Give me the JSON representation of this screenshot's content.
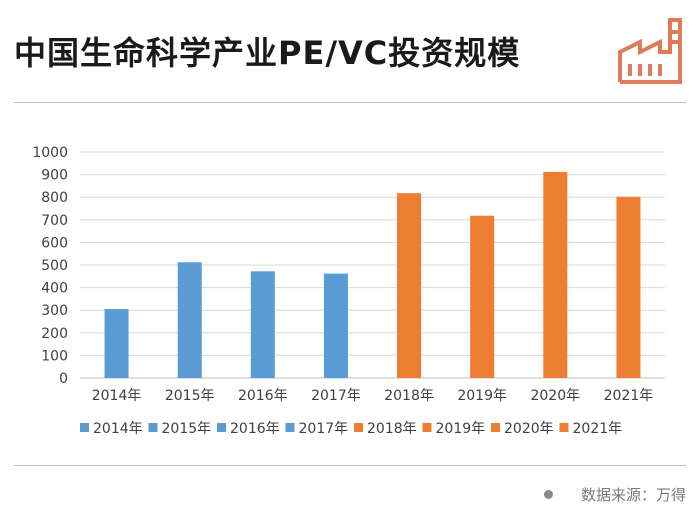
{
  "header": {
    "title": "中国生命科学产业PE/VC投资规模",
    "logo_icon": "factory-icon"
  },
  "colors": {
    "blue": "#5b9bd5",
    "orange": "#ed7d31",
    "logo": "#e07b5a"
  },
  "chart_data": {
    "type": "bar",
    "categories": [
      "2014年",
      "2015年",
      "2016年",
      "2017年",
      "2018年",
      "2019年",
      "2020年",
      "2021年"
    ],
    "values": [
      305,
      512,
      472,
      462,
      818,
      718,
      912,
      802
    ],
    "bar_colors": [
      "blue",
      "blue",
      "blue",
      "blue",
      "orange",
      "orange",
      "orange",
      "orange"
    ],
    "ylim": [
      0,
      1000
    ],
    "yticks": [
      0,
      100,
      200,
      300,
      400,
      500,
      600,
      700,
      800,
      900,
      1000
    ],
    "grid": true,
    "legend_position": "bottom",
    "legend": [
      "2014年",
      "2015年",
      "2016年",
      "2017年",
      "2018年",
      "2019年",
      "2020年",
      "2021年"
    ]
  },
  "footer": {
    "source": "数据来源：万得"
  }
}
